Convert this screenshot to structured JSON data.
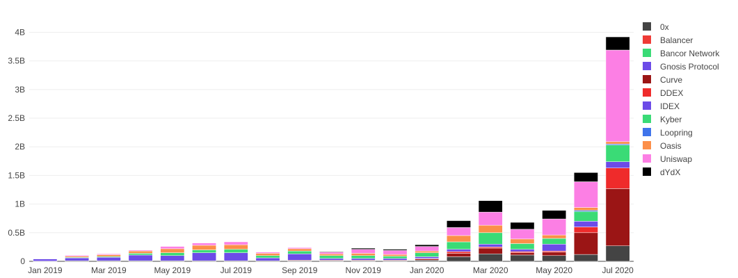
{
  "chart_data": {
    "type": "bar",
    "stacked": true,
    "categories": [
      "Jan 2019",
      "Feb 2019",
      "Mar 2019",
      "Apr 2019",
      "May 2019",
      "Jun 2019",
      "Jul 2019",
      "Aug 2019",
      "Sep 2019",
      "Oct 2019",
      "Nov 2019",
      "Dec 2019",
      "Jan 2020",
      "Feb 2020",
      "Mar 2020",
      "Apr 2020",
      "May 2020",
      "Jun 2020",
      "Jul 2020"
    ],
    "x_tick_labels": [
      "Jan 2019",
      "Mar 2019",
      "May 2019",
      "Jul 2019",
      "Sep 2019",
      "Nov 2019",
      "Jan 2020",
      "Mar 2020",
      "May 2020",
      "Jul 2020"
    ],
    "x_tick_categories": [
      "Jan 2019",
      "Mar 2019",
      "May 2019",
      "Jul 2019",
      "Sep 2019",
      "Nov 2019",
      "Jan 2020",
      "Mar 2020",
      "May 2020",
      "Jul 2020"
    ],
    "y_ticks": [
      0,
      0.5,
      1,
      1.5,
      2,
      2.5,
      3,
      3.5,
      4
    ],
    "y_tick_labels": [
      "0",
      "0.5B",
      "1B",
      "1.5B",
      "2B",
      "2.5B",
      "3B",
      "3.5B",
      "4B"
    ],
    "ylim": [
      0,
      4.2
    ],
    "units": "B",
    "grid": true,
    "legend_position": "right",
    "series": [
      {
        "name": "0x",
        "color": "#444444",
        "values": [
          0.005,
          0.01,
          0.01,
          0.01,
          0.01,
          0.01,
          0.01,
          0.01,
          0.01,
          0.01,
          0.01,
          0.01,
          0.02,
          0.08,
          0.13,
          0.11,
          0.1,
          0.12,
          0.27
        ]
      },
      {
        "name": "Balancer",
        "color": "#EF3B36",
        "values": [
          0,
          0,
          0,
          0,
          0,
          0,
          0,
          0,
          0,
          0,
          0,
          0,
          0,
          0,
          0,
          0,
          0,
          0,
          0
        ]
      },
      {
        "name": "Bancor Network",
        "color": "#3ADB76",
        "values": [
          0,
          0,
          0,
          0,
          0,
          0,
          0,
          0,
          0,
          0,
          0,
          0,
          0,
          0,
          0,
          0,
          0,
          0,
          0
        ]
      },
      {
        "name": "Gnosis Protocol",
        "color": "#6C4BE8",
        "values": [
          0,
          0,
          0,
          0,
          0,
          0,
          0,
          0,
          0,
          0,
          0,
          0,
          0,
          0,
          0,
          0,
          0,
          0,
          0
        ]
      },
      {
        "name": "Curve",
        "color": "#9B1515",
        "values": [
          0,
          0,
          0,
          0,
          0,
          0,
          0,
          0,
          0.01,
          0.01,
          0.01,
          0.01,
          0.02,
          0.06,
          0.1,
          0.04,
          0.06,
          0.38,
          1.0
        ]
      },
      {
        "name": "DDEX",
        "color": "#EF2B2B",
        "values": [
          0,
          0,
          0,
          0,
          0,
          0,
          0,
          0,
          0,
          0,
          0,
          0,
          0.01,
          0.03,
          0.02,
          0.02,
          0.02,
          0.1,
          0.36
        ]
      },
      {
        "name": "IDEX",
        "color": "#6C4BE8",
        "values": [
          0.035,
          0.05,
          0.06,
          0.1,
          0.09,
          0.14,
          0.14,
          0.05,
          0.11,
          0.03,
          0.03,
          0.03,
          0.03,
          0.04,
          0.05,
          0.04,
          0.12,
          0.1,
          0.11
        ]
      },
      {
        "name": "Kyber",
        "color": "#3ADB76",
        "values": [
          0,
          0.01,
          0.015,
          0.03,
          0.05,
          0.05,
          0.06,
          0.04,
          0.05,
          0.05,
          0.05,
          0.04,
          0.07,
          0.13,
          0.2,
          0.1,
          0.1,
          0.17,
          0.29
        ]
      },
      {
        "name": "Loopring",
        "color": "#3F74EB",
        "values": [
          0,
          0,
          0,
          0,
          0,
          0,
          0,
          0,
          0,
          0,
          0,
          0,
          0,
          0,
          0,
          0,
          0,
          0.02,
          0.02
        ]
      },
      {
        "name": "Oasis",
        "color": "#FC8F49",
        "values": [
          0,
          0.02,
          0.03,
          0.04,
          0.07,
          0.08,
          0.08,
          0.04,
          0.04,
          0.03,
          0.04,
          0.03,
          0.03,
          0.11,
          0.13,
          0.08,
          0.06,
          0.05,
          0.04
        ]
      },
      {
        "name": "Uniswap",
        "color": "#FC7FE4",
        "values": [
          0,
          0.015,
          0.015,
          0.015,
          0.04,
          0.04,
          0.05,
          0.02,
          0.02,
          0.03,
          0.07,
          0.07,
          0.08,
          0.14,
          0.23,
          0.17,
          0.28,
          0.45,
          1.6
        ]
      },
      {
        "name": "dYdX",
        "color": "#000000",
        "values": [
          0,
          0,
          0,
          0,
          0,
          0,
          0,
          0,
          0,
          0.01,
          0.02,
          0.02,
          0.03,
          0.12,
          0.2,
          0.12,
          0.15,
          0.16,
          0.23
        ]
      }
    ]
  }
}
